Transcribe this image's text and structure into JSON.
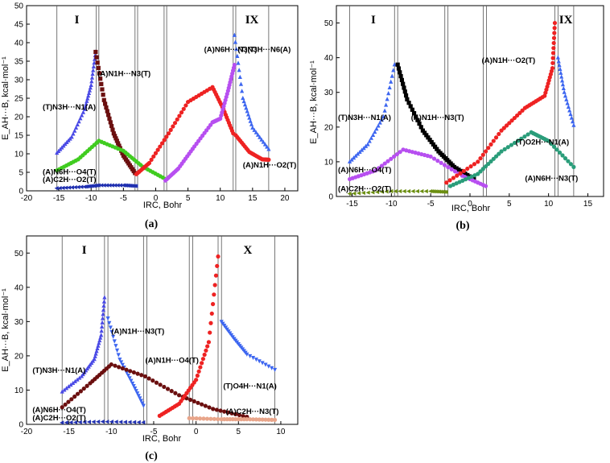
{
  "chart_data": [
    {
      "type": "scatter",
      "panel_label": "(a)",
      "xlabel": "IRC, Bohr",
      "ylabel": "E_AH···B, kcal·mol⁻¹",
      "xlim": [
        -20,
        22
      ],
      "ylim": [
        0,
        50
      ],
      "xticks": [
        -20,
        -15,
        -10,
        -5,
        0,
        5,
        10,
        15,
        20
      ],
      "yticks": [
        0,
        5,
        10,
        15,
        20,
        25,
        30,
        35,
        40,
        45,
        50
      ],
      "vlines": [
        -15.3,
        -9.2,
        -8.8,
        -3.2,
        -2.8,
        1.3,
        1.7,
        12.0,
        12.4,
        17.5
      ],
      "zones": [
        {
          "label": "I",
          "x": -12.2
        },
        {
          "label": "IX",
          "x": 14.9
        }
      ],
      "series": [
        {
          "name": "(T)N3H···N1(A)",
          "color": "#4a4ae6",
          "marker": "triangle-up",
          "x": [
            -15.3,
            -13,
            -11,
            -10,
            -9.3
          ],
          "y": [
            10.2,
            14.5,
            22,
            28.5,
            37.5
          ]
        },
        {
          "name": "(A)N1H···N3(T)",
          "color": "#6b0f0f",
          "marker": "square",
          "x": [
            -9.3,
            -8,
            -6.5,
            -5,
            -3.2
          ],
          "y": [
            37.5,
            24.5,
            15.5,
            9.5,
            4.8
          ]
        },
        {
          "name": "(A)N6H···O4(T)",
          "color": "#40cc20",
          "marker": "circle",
          "x": [
            -15.3,
            -12,
            -8.8,
            -5,
            -2,
            1.5
          ],
          "y": [
            5.5,
            8.5,
            13.5,
            10.8,
            6.5,
            3.2
          ]
        },
        {
          "name": "(A)C2H···O2(T)",
          "color": "#1f2fb0",
          "marker": "triangle-left",
          "x": [
            -15.3,
            -11,
            -8.8,
            -5,
            -3
          ],
          "y": [
            0.7,
            1.1,
            1.5,
            1.5,
            1.3
          ]
        },
        {
          "name": "(A)N6H···N3(T)",
          "color": "#ee2222",
          "marker": "circle",
          "x": [
            -3,
            -1,
            2,
            5,
            8.8,
            10.5,
            12
          ],
          "y": [
            4.5,
            7.5,
            15.5,
            24,
            28,
            22,
            15.5
          ]
        },
        {
          "name": "(A)N6H···N3(T) (violet)",
          "color": "#b74ff0",
          "marker": "circle",
          "x": [
            1.5,
            3.5,
            6,
            8.8,
            10,
            11.2,
            12.2
          ],
          "y": [
            2.8,
            6,
            12,
            18.5,
            19.5,
            27,
            34
          ]
        },
        {
          "name": "(T)N3H···N6(A)",
          "color": "#3d66f0",
          "marker": "triangle-up",
          "x": [
            12.2,
            13.5,
            15,
            17.5
          ],
          "y": [
            42,
            25,
            17,
            11.2
          ]
        },
        {
          "name": "(A)N1H···O2(T)",
          "color": "#ee2222",
          "marker": "circle",
          "x": [
            12.4,
            14.5,
            16.5,
            17.5
          ],
          "y": [
            15,
            10.5,
            8.5,
            8.4
          ]
        }
      ],
      "annotations": [
        {
          "text": "(T)N3H···N1(A)",
          "x": -17.5,
          "y": 22
        },
        {
          "text": "(A)N1H···N3(T)",
          "x": -9,
          "y": 31
        },
        {
          "text": "(A)N6H···O4(T)",
          "x": -17.5,
          "y": 4.5
        },
        {
          "text": "(A)C2H···O2(T)",
          "x": -17.5,
          "y": 2.4
        },
        {
          "text": "(A)N6H···N3(T)",
          "x": 7.5,
          "y": 37.5
        },
        {
          "text": "(T)N3H···N6(A)",
          "x": 12.7,
          "y": 37.5
        },
        {
          "text": "(A)N1H···O2(T)",
          "x": 13.5,
          "y": 6.3
        }
      ]
    },
    {
      "type": "scatter",
      "panel_label": "(b)",
      "xlabel": "IRC, Bohr",
      "ylabel": "E_AH···B, kcal·mol⁻¹",
      "xlim": [
        -17,
        17
      ],
      "ylim": [
        0,
        55
      ],
      "xticks": [
        -15,
        -10,
        -5,
        0,
        5,
        10,
        15
      ],
      "yticks": [
        0,
        10,
        20,
        30,
        40,
        50
      ],
      "vlines": [
        -15.3,
        -9.6,
        -9.2,
        -3.2,
        -2.8,
        1.7,
        2.1,
        10.8,
        11.2,
        13.2
      ],
      "zones": [
        {
          "label": "I",
          "x": -12.3
        },
        {
          "label": "IX",
          "x": 12.2
        }
      ],
      "series": [
        {
          "name": "(T)N3H···N1(A)",
          "color": "#3d66f0",
          "marker": "triangle-up",
          "x": [
            -15.3,
            -13,
            -11,
            -9.6
          ],
          "y": [
            10,
            15,
            23,
            38
          ]
        },
        {
          "name": "(A)N1H···N3(T)",
          "color": "#000000",
          "marker": "square",
          "x": [
            -9.2,
            -8,
            -6,
            -4,
            -2,
            0.5
          ],
          "y": [
            38,
            28,
            19,
            13,
            8.5,
            5
          ]
        },
        {
          "name": "(A)N6H···O4(T)",
          "color": "#b74ff0",
          "marker": "circle",
          "x": [
            -15.3,
            -12,
            -8.5,
            -5,
            -1,
            2
          ],
          "y": [
            5,
            7.5,
            13.5,
            11.5,
            6,
            3
          ]
        },
        {
          "name": "(A)C2H···O2(T)",
          "color": "#6b8e10",
          "marker": "triangle-left",
          "x": [
            -15.3,
            -10,
            -5,
            -3
          ],
          "y": [
            0.8,
            1.5,
            1.5,
            1.3
          ]
        },
        {
          "name": "(A)N1H···O2(T)",
          "color": "#ee2222",
          "marker": "circle",
          "x": [
            -3,
            1,
            4,
            7,
            9.5,
            10.5,
            10.8
          ],
          "y": [
            4,
            10,
            19,
            25.5,
            29,
            37,
            50
          ]
        },
        {
          "name": "(T)O2H···N1(A)",
          "color": "#3d66f0",
          "marker": "triangle-up",
          "x": [
            11.2,
            12,
            13.2
          ],
          "y": [
            40,
            30,
            20.5
          ]
        },
        {
          "name": "(A)N6H···N3(T)",
          "color": "#2a9d7a",
          "marker": "circle",
          "x": [
            -2.5,
            1,
            4,
            7.8,
            10,
            13.2
          ],
          "y": [
            3,
            6.5,
            13,
            18.5,
            16,
            8.5
          ]
        }
      ],
      "annotations": [
        {
          "text": "(T)N3H···N1(A)",
          "x": -16.8,
          "y": 22
        },
        {
          "text": "(A)N1H···N3(T)",
          "x": -7.5,
          "y": 22
        },
        {
          "text": "(A)N6H···O4(T)",
          "x": -16.8,
          "y": 7
        },
        {
          "text": "(A)C2H···O2(T)",
          "x": -16.8,
          "y": 1.5
        },
        {
          "text": "(A)N1H···O2(T)",
          "x": 1.5,
          "y": 38.5
        },
        {
          "text": "(T)O2H···N1(A)",
          "x": 5.8,
          "y": 15
        },
        {
          "text": "(A)N6H···N3(T)",
          "x": 7,
          "y": 4.5
        }
      ]
    },
    {
      "type": "scatter",
      "panel_label": "(c)",
      "xlabel": "IRC, Bohr",
      "ylabel": "E_AH···B, kcal·mol⁻¹",
      "xlim": [
        -20,
        12
      ],
      "ylim": [
        0,
        55
      ],
      "xticks": [
        -20,
        -15,
        -10,
        -5,
        0,
        5,
        10
      ],
      "yticks": [
        0,
        10,
        20,
        30,
        40,
        50
      ],
      "vlines": [
        -15.8,
        -10.8,
        -10.4,
        -6.2,
        -5.8,
        -0.8,
        -0.4,
        2.6,
        3.0,
        9.3
      ],
      "zones": [
        {
          "label": "I",
          "x": -13.2
        },
        {
          "label": "X",
          "x": 6.1
        }
      ],
      "series": [
        {
          "name": "(T)N3H···N1(A)",
          "color": "#4a4ae6",
          "marker": "triangle-up",
          "x": [
            -15.8,
            -13.5,
            -12,
            -11.2,
            -10.8
          ],
          "y": [
            9.5,
            14,
            19,
            26,
            37
          ]
        },
        {
          "name": "(A)N1H···N3(T)",
          "color": "#3d66f0",
          "marker": "triangle-down",
          "x": [
            -10.4,
            -9,
            -7.5,
            -6.2
          ],
          "y": [
            31,
            19,
            12,
            5.5
          ]
        },
        {
          "name": "(A)N6H···O4(T)",
          "color": "#6b0f0f",
          "marker": "circle",
          "x": [
            -15.8,
            -12.5,
            -10,
            -6,
            -2,
            2,
            6
          ],
          "y": [
            5,
            12,
            17.5,
            14,
            8.5,
            4.5,
            2.2
          ]
        },
        {
          "name": "(A)C2H···O2(T)",
          "color": "#1f2fb0",
          "marker": "triangle-left",
          "x": [
            -15.8,
            -11,
            -6.2
          ],
          "y": [
            0.5,
            0.8,
            0.6
          ]
        },
        {
          "name": "(A)N1H···O4(T)",
          "color": "#ee2222",
          "marker": "circle",
          "x": [
            -4.3,
            -2,
            0,
            1.5,
            2.6
          ],
          "y": [
            2.5,
            6,
            13,
            24,
            49
          ]
        },
        {
          "name": "(T)O4H···N1(A)",
          "color": "#3d66f0",
          "marker": "triangle-down",
          "x": [
            3,
            4.5,
            6,
            9.3
          ],
          "y": [
            30,
            25,
            20.5,
            16
          ]
        },
        {
          "name": "(A)C2H···N3(T)",
          "color": "#e8a58a",
          "marker": "circle",
          "x": [
            -0.8,
            3,
            6,
            9.3
          ],
          "y": [
            1.8,
            1.5,
            1.5,
            1.3
          ]
        }
      ],
      "annotations": [
        {
          "text": "(T)N3H···N1(A)",
          "x": -19.3,
          "y": 15
        },
        {
          "text": "(A)N1H···N3(T)",
          "x": -10,
          "y": 26.5
        },
        {
          "text": "(A)N1H···O4(T)",
          "x": -6,
          "y": 18
        },
        {
          "text": "(A)N6H···O4(T)",
          "x": -19.3,
          "y": 3.5
        },
        {
          "text": "(A)C2H···O2(T)",
          "x": -19.3,
          "y": 1.2
        },
        {
          "text": "(T)O4H···N1(A)",
          "x": 3.2,
          "y": 10.5
        },
        {
          "text": "(A)C2H···N3(T)",
          "x": 3.5,
          "y": 3
        }
      ]
    }
  ]
}
